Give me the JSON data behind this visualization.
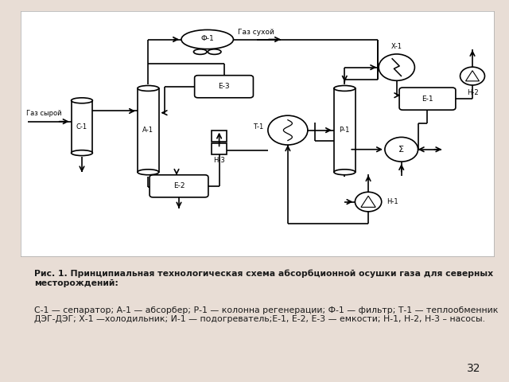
{
  "bg_color": "#e8ddd5",
  "diagram_bg": "#ffffff",
  "line_color": "#000000",
  "text_color": "#1a1a1a",
  "caption_bold": "Рис. 1. Принципиальная технологическая схема абсорбционной осушки газа для северных месторождений:",
  "caption_normal": "С-1 — сепаратор; А-1 — абсорбер; Р-1 — колонна регенерации; Ф-1 — фильтр; Т-1 — теплообменник ДЭГ-ДЭГ; Х-1 —холодильник; И-1 — подогреватель;Е-1, Е-2, Е-3 — емкости; Н-1, Н-2, Н-3 – насосы.",
  "page_number": "32",
  "label_gaz_suhoy": "Газ сухой",
  "label_gaz_syroy": "Газ сырой"
}
